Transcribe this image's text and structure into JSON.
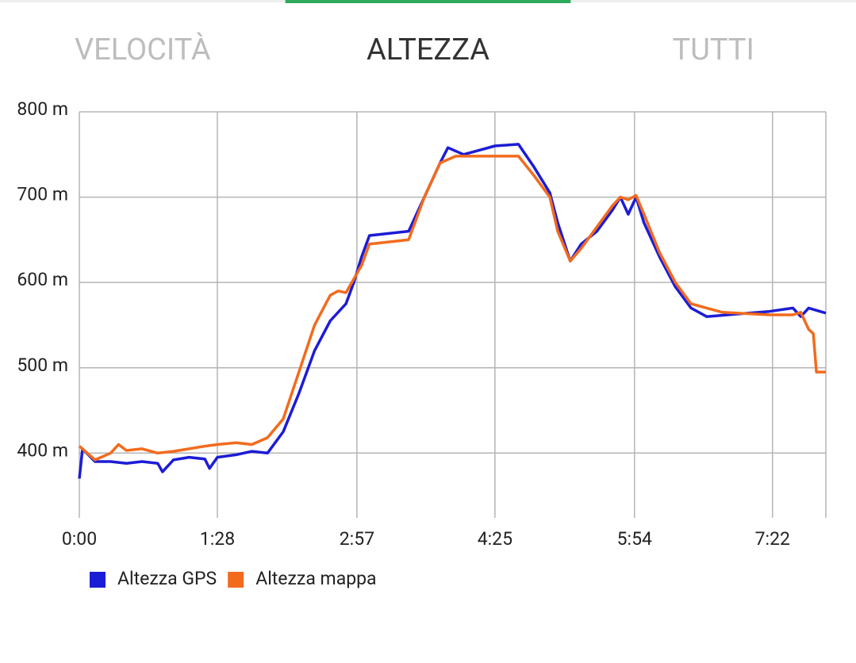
{
  "tabs": {
    "items": [
      "VELOCITÀ",
      "ALTEZZA",
      "TUTTI"
    ],
    "selected": 1
  },
  "chart_data": {
    "type": "line",
    "xlim": [
      0,
      476
    ],
    "ylim": [
      324,
      800
    ],
    "xticks": [
      {
        "value": 0,
        "label": "0:00"
      },
      {
        "value": 88,
        "label": "1:28"
      },
      {
        "value": 177,
        "label": "2:57"
      },
      {
        "value": 265,
        "label": "4:25"
      },
      {
        "value": 354,
        "label": "5:54"
      },
      {
        "value": 442,
        "label": "7:22"
      }
    ],
    "yticks": [
      {
        "value": 400,
        "label": "400 m"
      },
      {
        "value": 500,
        "label": "500 m"
      },
      {
        "value": 600,
        "label": "600 m"
      },
      {
        "value": 700,
        "label": "700 m"
      },
      {
        "value": 800,
        "label": "800 m"
      }
    ],
    "grid": true,
    "series": [
      {
        "name": "Altezza GPS",
        "color": "#1c1cd6",
        "x": [
          0,
          2,
          10,
          20,
          30,
          40,
          50,
          53,
          60,
          70,
          80,
          83,
          88,
          100,
          110,
          120,
          130,
          140,
          150,
          160,
          170,
          175,
          180,
          185,
          200,
          210,
          220,
          230,
          235,
          245,
          255,
          265,
          280,
          290,
          300,
          305,
          313,
          320,
          330,
          340,
          345,
          350,
          355,
          360,
          370,
          380,
          390,
          400,
          420,
          440,
          455,
          460,
          465,
          476
        ],
        "values": [
          370,
          405,
          390,
          390,
          388,
          390,
          388,
          378,
          392,
          395,
          393,
          382,
          395,
          398,
          402,
          400,
          425,
          470,
          520,
          555,
          575,
          600,
          630,
          655,
          658,
          660,
          700,
          740,
          758,
          750,
          755,
          760,
          762,
          735,
          705,
          670,
          625,
          645,
          660,
          685,
          700,
          680,
          700,
          670,
          630,
          595,
          570,
          560,
          563,
          566,
          570,
          560,
          570,
          564
        ]
      },
      {
        "name": "Altezza mappa",
        "color": "#f26b1d",
        "x": [
          0,
          10,
          20,
          25,
          30,
          40,
          50,
          60,
          70,
          80,
          88,
          100,
          110,
          120,
          130,
          140,
          150,
          160,
          165,
          170,
          180,
          185,
          200,
          210,
          220,
          230,
          240,
          260,
          280,
          290,
          300,
          305,
          313,
          320,
          330,
          340,
          345,
          350,
          355,
          360,
          370,
          380,
          390,
          400,
          410,
          440,
          455,
          460,
          465,
          468,
          470,
          476
        ],
        "values": [
          408,
          392,
          400,
          410,
          403,
          405,
          400,
          402,
          405,
          408,
          410,
          412,
          410,
          418,
          440,
          495,
          550,
          585,
          590,
          588,
          620,
          645,
          648,
          650,
          700,
          740,
          748,
          748,
          748,
          725,
          700,
          660,
          625,
          640,
          665,
          690,
          700,
          697,
          702,
          680,
          635,
          600,
          575,
          570,
          565,
          562,
          562,
          565,
          545,
          540,
          495,
          495
        ]
      }
    ]
  }
}
